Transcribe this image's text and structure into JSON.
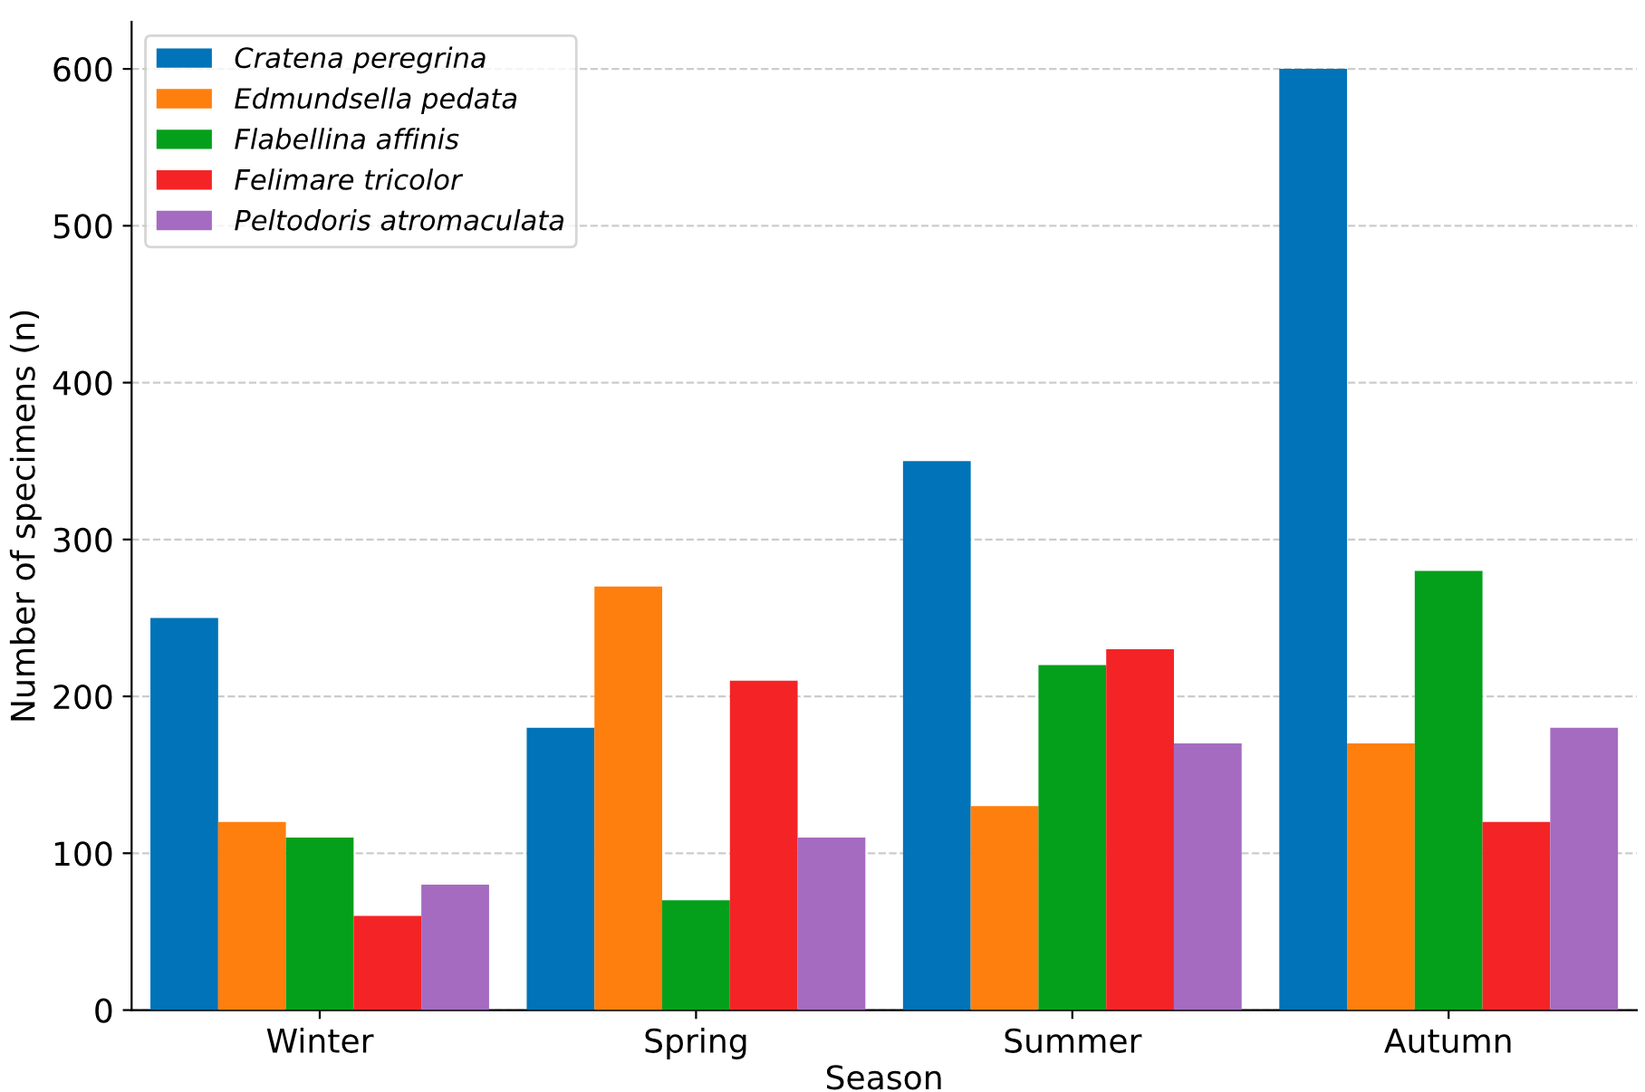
{
  "chart_data": {
    "type": "bar",
    "xlabel": "Season",
    "ylabel": "Number of specimens (n)",
    "categories": [
      "Winter",
      "Spring",
      "Summer",
      "Autumn"
    ],
    "series": [
      {
        "name": "Cratena peregrina",
        "color": "#0173b8",
        "values": [
          250,
          180,
          350,
          600
        ]
      },
      {
        "name": "Edmundsella pedata",
        "color": "#ff7f0e",
        "values": [
          120,
          270,
          130,
          170
        ]
      },
      {
        "name": "Flabellina affinis",
        "color": "#05a01b",
        "values": [
          110,
          70,
          220,
          280
        ]
      },
      {
        "name": "Felimare tricolor",
        "color": "#f42426",
        "values": [
          60,
          210,
          230,
          120
        ]
      },
      {
        "name": "Peltodoris atromaculata",
        "color": "#a56bc1",
        "values": [
          80,
          110,
          170,
          180
        ]
      }
    ],
    "ylim": [
      0,
      630
    ],
    "yticks": [
      0,
      100,
      200,
      300,
      400,
      500,
      600
    ],
    "grid": "y",
    "legend": "top left"
  }
}
